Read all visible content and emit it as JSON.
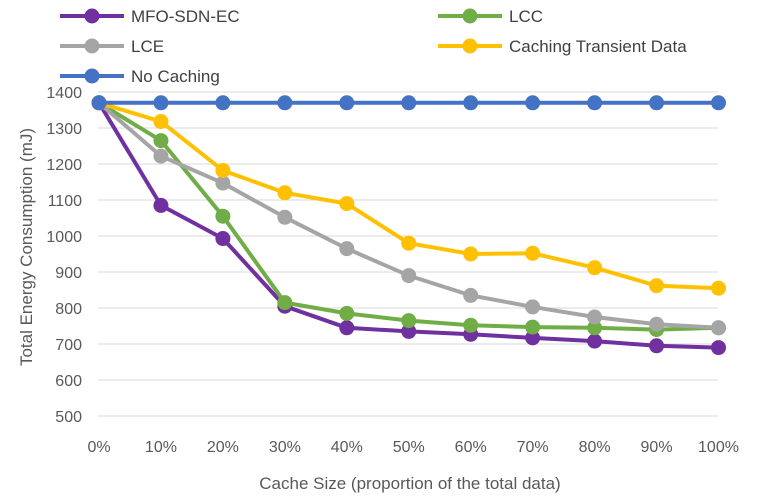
{
  "chart_data": {
    "type": "line",
    "title": "",
    "xlabel": "Cache Size (proportion of the total data)",
    "ylabel": "Total Energy Consumption (mJ)",
    "x": [
      "0%",
      "10%",
      "20%",
      "30%",
      "40%",
      "50%",
      "60%",
      "70%",
      "80%",
      "90%",
      "100%"
    ],
    "ylim": [
      500,
      1400
    ],
    "yticks": [
      "500",
      "600",
      "700",
      "800",
      "900",
      "1000",
      "1100",
      "1200",
      "1300",
      "1400"
    ],
    "grid": "horizontal",
    "legend_position": "top",
    "series": [
      {
        "name": "MFO-SDN-EC",
        "color": "#7030A0",
        "values": [
          1370,
          1085,
          993,
          805,
          745,
          735,
          727,
          717,
          708,
          695,
          690
        ]
      },
      {
        "name": "LCC",
        "color": "#70AD47",
        "values": [
          1370,
          1265,
          1055,
          815,
          785,
          765,
          752,
          747,
          745,
          740,
          745
        ]
      },
      {
        "name": "LCE",
        "color": "#A5A5A5",
        "values": [
          1370,
          1222,
          1147,
          1052,
          965,
          890,
          835,
          803,
          775,
          755,
          745
        ]
      },
      {
        "name": "Caching Transient Data",
        "color": "#FFC000",
        "values": [
          1370,
          1318,
          1182,
          1120,
          1090,
          980,
          950,
          952,
          912,
          862,
          855
        ]
      },
      {
        "name": "No Caching",
        "color": "#4472C4",
        "values": [
          1370,
          1370,
          1370,
          1370,
          1370,
          1370,
          1370,
          1370,
          1370,
          1370,
          1370
        ]
      }
    ]
  }
}
